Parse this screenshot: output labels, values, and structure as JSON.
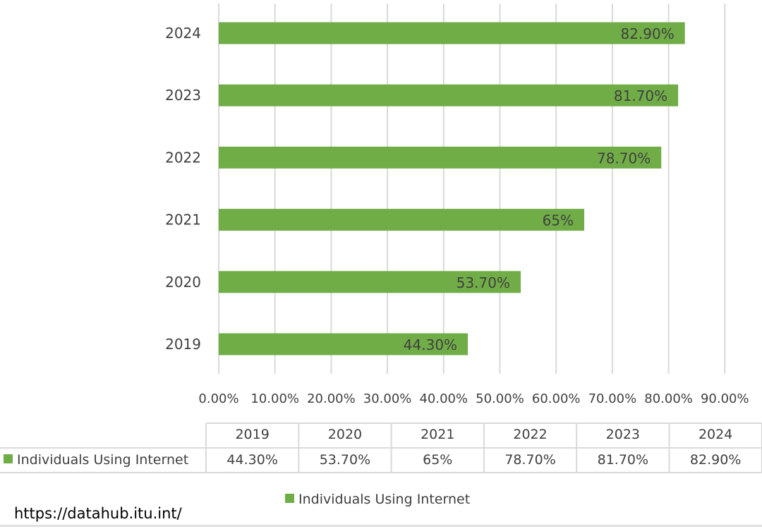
{
  "chart_data": {
    "type": "bar",
    "orientation": "horizontal",
    "categories": [
      "2019",
      "2020",
      "2021",
      "2022",
      "2023",
      "2024"
    ],
    "series": [
      {
        "name": "Individuals Using Internet",
        "values": [
          44.3,
          53.7,
          65,
          78.7,
          81.7,
          82.9
        ],
        "labels": [
          "44.30%",
          "53.70%",
          "65%",
          "78.70%",
          "81.70%",
          "82.90%"
        ]
      }
    ],
    "xlim": [
      0,
      90
    ],
    "x_ticks": [
      0,
      10,
      20,
      30,
      40,
      50,
      60,
      70,
      80,
      90
    ],
    "x_tick_labels": [
      "0.00%",
      "10.00%",
      "20.00%",
      "30.00%",
      "40.00%",
      "50.00%",
      "60.00%",
      "70.00%",
      "80.00%",
      "90.00%"
    ],
    "grid": true,
    "legend": "bottom",
    "data_table": true,
    "colors": {
      "bar": "#70ad47",
      "grid": "#d9d9d9",
      "text": "#404040"
    }
  },
  "source": "https://datahub.itu.int/"
}
